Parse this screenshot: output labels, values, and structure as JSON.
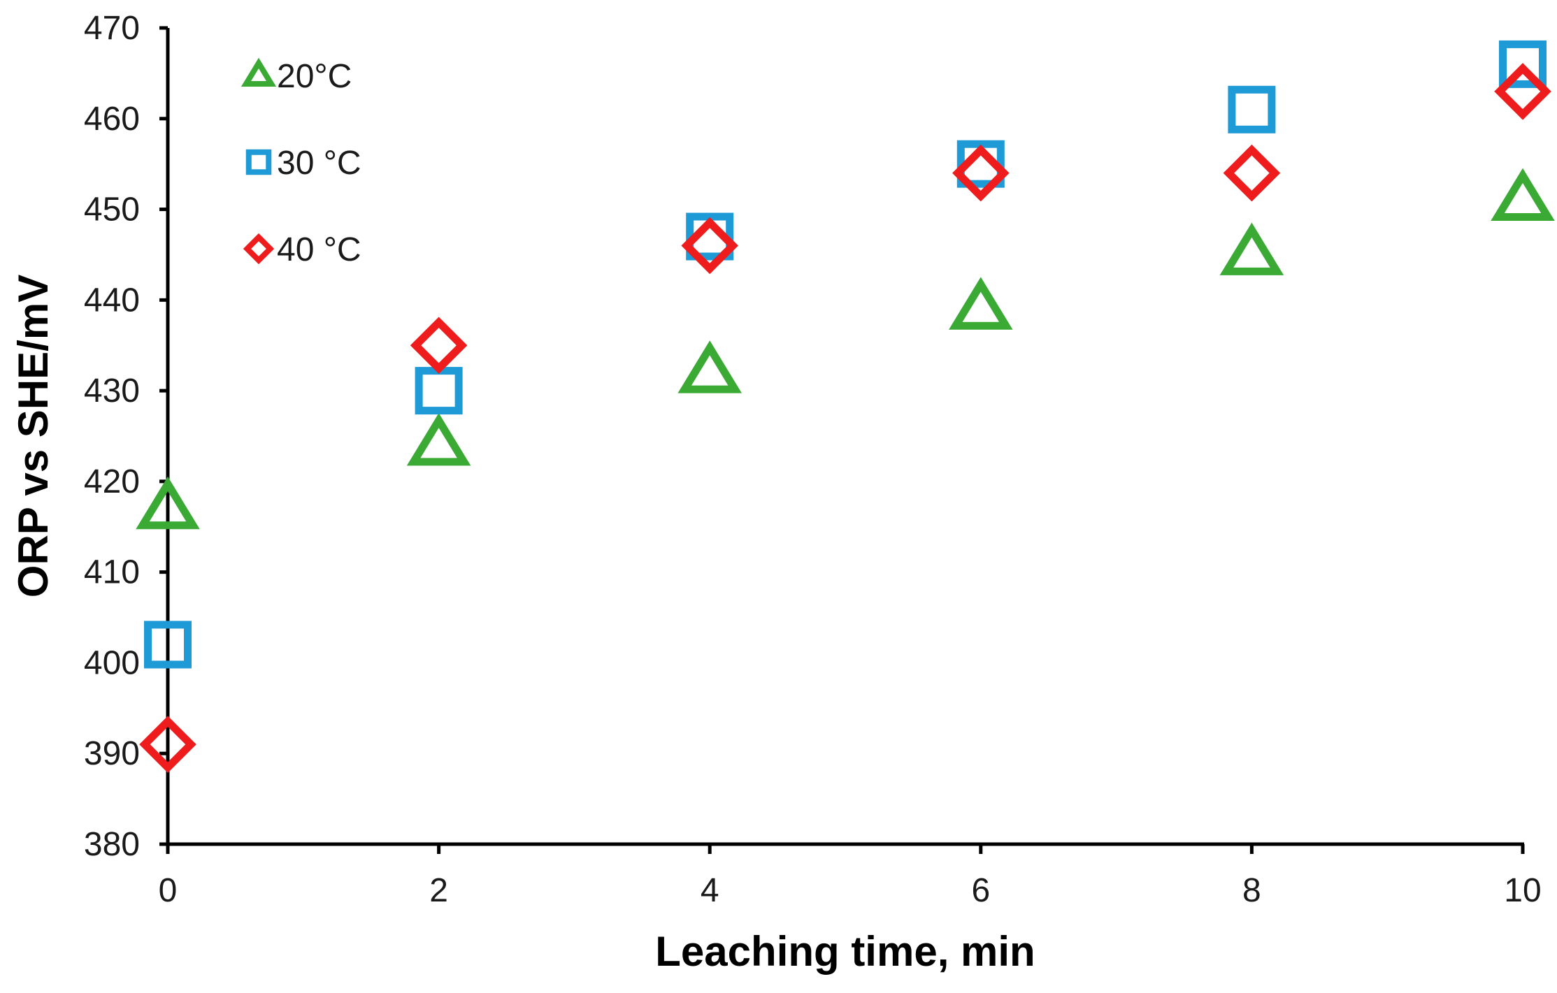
{
  "chart_data": {
    "type": "scatter",
    "title": "",
    "xlabel": "Leaching time, min",
    "ylabel": "ORP vs SHE/mV",
    "xlim": [
      0,
      10
    ],
    "ylim": [
      380,
      470
    ],
    "x_ticks": [
      0,
      2,
      4,
      6,
      8,
      10
    ],
    "y_ticks": [
      380,
      390,
      400,
      410,
      420,
      430,
      440,
      450,
      460,
      470
    ],
    "x_tick_labels": [
      "0",
      "2",
      "4",
      "6",
      "8",
      "10"
    ],
    "y_tick_labels": [
      "380",
      "390",
      "400",
      "410",
      "420",
      "430",
      "440",
      "450",
      "460",
      "470"
    ],
    "grid": false,
    "legend_position": "top-left",
    "x": [
      0,
      2,
      4,
      6,
      8,
      10
    ],
    "series": [
      {
        "name": "20°C",
        "marker": "triangle",
        "color": "#3aaa35",
        "values": [
          417,
          424,
          432,
          439,
          445,
          451
        ]
      },
      {
        "name": "30 °C",
        "marker": "square",
        "color": "#1e9ad6",
        "values": [
          402,
          430,
          447,
          455,
          461,
          466
        ]
      },
      {
        "name": "40 °C",
        "marker": "diamond",
        "color": "#ee1c1c",
        "values": [
          391,
          435,
          446,
          454,
          454,
          463
        ]
      }
    ]
  }
}
